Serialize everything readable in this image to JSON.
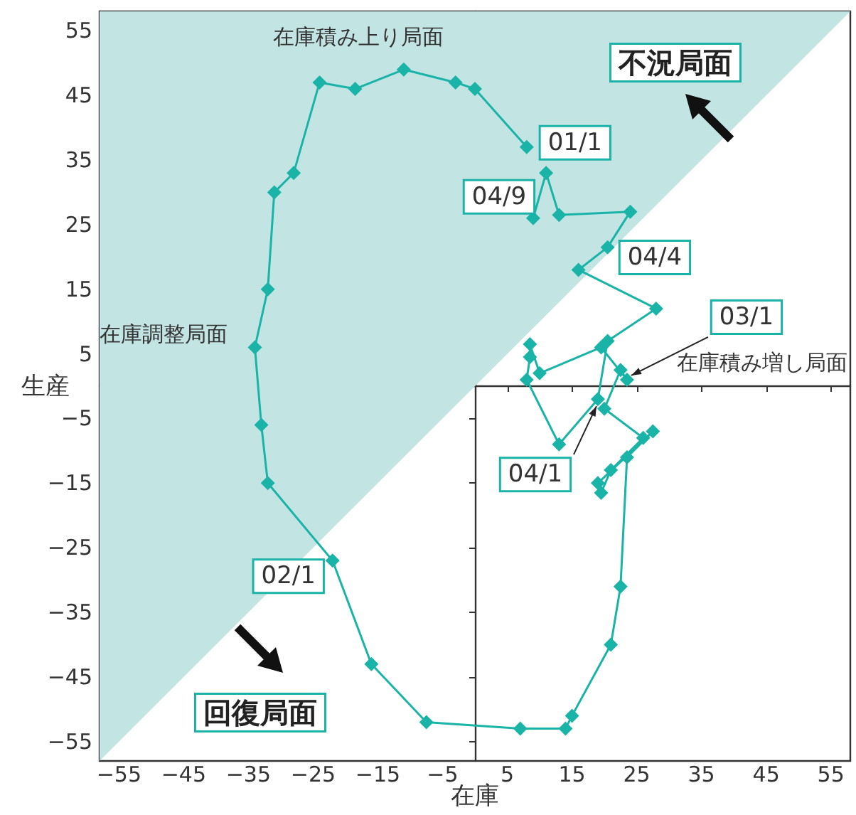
{
  "chart_data": {
    "type": "line",
    "xlabel": "在庫",
    "ylabel": "生産",
    "xlim": [
      -58,
      58
    ],
    "ylim": [
      -58,
      58
    ],
    "xticks": [
      {
        "value": -55,
        "label": "−55"
      },
      {
        "value": -45,
        "label": "−45"
      },
      {
        "value": -35,
        "label": "−35"
      },
      {
        "value": -25,
        "label": "−25"
      },
      {
        "value": -15,
        "label": "−15"
      },
      {
        "value": -5,
        "label": "−5"
      },
      5,
      15,
      25,
      35,
      45,
      55
    ],
    "yticks": [
      {
        "value": -55,
        "label": "−55"
      },
      {
        "value": -45,
        "label": "−45"
      },
      {
        "value": -35,
        "label": "−35"
      },
      {
        "value": -25,
        "label": "−25"
      },
      {
        "value": -15,
        "label": "−15"
      },
      {
        "value": -5,
        "label": "−5"
      },
      5,
      15,
      25,
      35,
      45,
      55
    ],
    "grid": false,
    "marker": "diamond",
    "line_style": "solid",
    "series": [
      {
        "type": "area",
        "x": [
          -58,
          58
        ],
        "values": [
          -58,
          58
        ],
        "color": "#c2e4e2",
        "marker": "none"
      },
      {
        "color": "#1ab3a8",
        "x": [
          8,
          0,
          -3,
          -11,
          -18.5,
          -24,
          -28,
          -31,
          -32,
          -34,
          -33,
          -32,
          -22,
          -16,
          -7.5,
          7,
          14,
          15,
          21,
          22.5,
          23.5,
          27.5,
          19,
          19.5,
          21,
          26,
          20,
          22.5,
          23.5,
          19.5,
          10,
          8.5,
          8.5,
          8,
          13,
          19,
          20.5,
          28,
          16,
          20.5,
          24,
          13,
          11,
          9
        ],
        "values": [
          37,
          46,
          47,
          49,
          46,
          47,
          33,
          30,
          15,
          6,
          -6,
          -15,
          -27,
          -43,
          -52,
          -53,
          -53,
          -51,
          -40,
          -31,
          -11,
          -7,
          -15,
          -16.5,
          -13,
          -8,
          -3.5,
          2.5,
          1,
          6,
          2,
          6.5,
          4.5,
          1,
          -9,
          -2,
          7,
          12,
          18,
          21.5,
          27,
          26.5,
          33,
          26
        ]
      }
    ],
    "annotations": [
      {
        "text": "01/1",
        "x": 8,
        "y": 37
      },
      {
        "text": "04/9",
        "x": 9,
        "y": 26
      },
      {
        "text": "04/4",
        "x": 28,
        "y": 12
      },
      {
        "text": "03/1",
        "x": 23.5,
        "y": 1
      },
      {
        "text": "04/1",
        "x": 19,
        "y": -2
      },
      {
        "text": "02/1",
        "x": -22,
        "y": -27
      },
      "在庫積み上り局面",
      "不況局面",
      "在庫積み増し局面",
      "在庫調整局面",
      "回復局面"
    ]
  }
}
